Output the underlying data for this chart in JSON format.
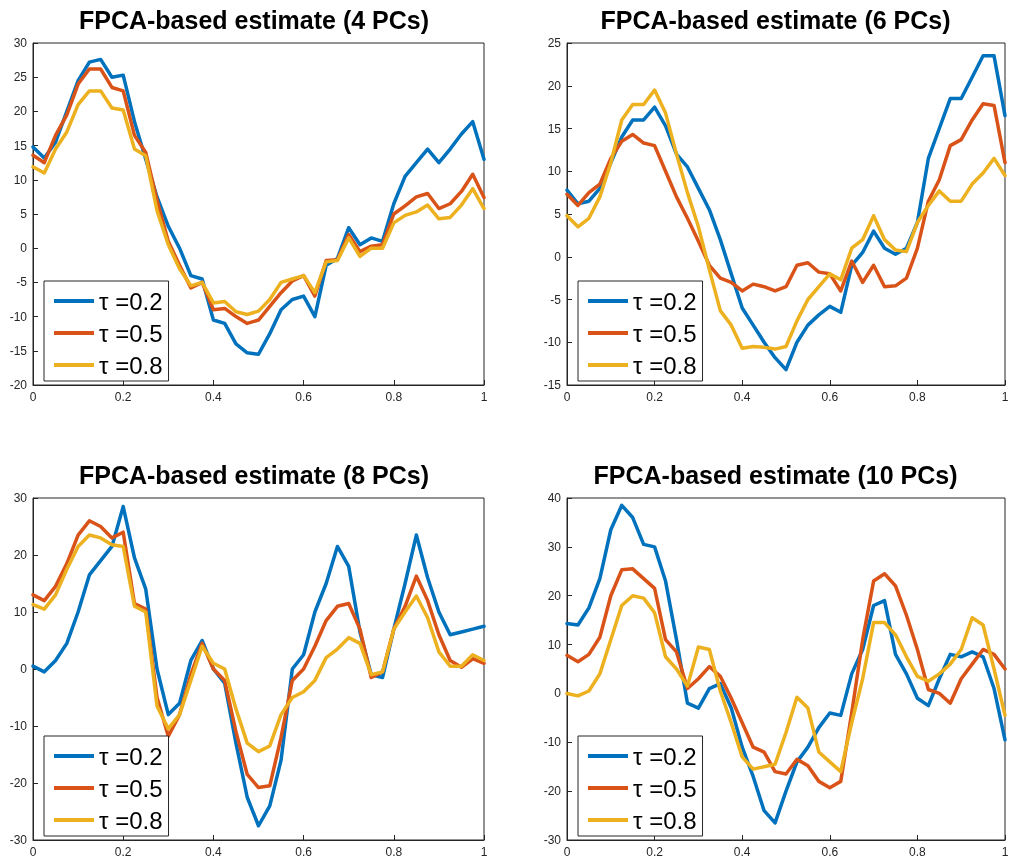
{
  "chart_data": [
    {
      "type": "line",
      "title": "FPCA-based estimate (4 PCs)",
      "legend": "bottom left",
      "grid": false,
      "marker": "none",
      "line_style": "solid",
      "xlim": [
        0,
        1
      ],
      "xticks": [
        0,
        0.2,
        0.4,
        0.6,
        0.8,
        1
      ],
      "ylim": [
        -20,
        30
      ],
      "yticks": [
        -20,
        -15,
        -10,
        -5,
        0,
        5,
        10,
        15,
        20,
        25,
        30
      ],
      "x": [
        0,
        0.025,
        0.05,
        0.075,
        0.1,
        0.125,
        0.15,
        0.175,
        0.2,
        0.225,
        0.25,
        0.275,
        0.3,
        0.325,
        0.35,
        0.375,
        0.4,
        0.425,
        0.45,
        0.475,
        0.5,
        0.525,
        0.55,
        0.575,
        0.6,
        0.625,
        0.65,
        0.675,
        0.7,
        0.725,
        0.75,
        0.775,
        0.8,
        0.825,
        0.85,
        0.875,
        0.9,
        0.925,
        0.95,
        0.975,
        1
      ],
      "series": [
        {
          "name": "τ =0.2",
          "color": "#0072bd",
          "values": [
            14.8,
            13.2,
            15.5,
            20,
            24.5,
            27.2,
            27.6,
            25,
            25.3,
            18.5,
            13,
            7.5,
            3.2,
            0,
            -4,
            -4.5,
            -10.5,
            -11,
            -14,
            -15.3,
            -15.5,
            -12.5,
            -9,
            -7.5,
            -7,
            -10,
            -2.5,
            -1.5,
            3,
            0.5,
            1.5,
            1,
            6.5,
            10.5,
            12.5,
            14.5,
            12.5,
            14.5,
            16.7,
            18.5,
            13
          ]
        },
        {
          "name": "τ =0.5",
          "color": "#d95319",
          "values": [
            13.6,
            12.5,
            16.5,
            19.5,
            24,
            26.2,
            26.2,
            23.5,
            23,
            16.5,
            14,
            7,
            1,
            -2.5,
            -5.8,
            -5,
            -9,
            -8.8,
            -10,
            -11,
            -10.5,
            -8.5,
            -6.5,
            -4.8,
            -4,
            -7,
            -1.8,
            -1.7,
            2,
            -0.5,
            0.3,
            0.5,
            5,
            6.2,
            7.5,
            8,
            5.8,
            6.5,
            8.3,
            10.8,
            7.4
          ]
        },
        {
          "name": "τ =0.8",
          "color": "#edb120",
          "values": [
            11.9,
            11,
            14.5,
            17,
            21,
            23,
            23,
            20.5,
            20.2,
            14.5,
            13.5,
            5.5,
            0.5,
            -3,
            -5.5,
            -5,
            -8,
            -7.8,
            -9.3,
            -9.7,
            -9.2,
            -7.5,
            -5,
            -4.5,
            -4,
            -6.5,
            -2,
            -1.8,
            1.5,
            -1.2,
            0,
            0,
            3.7,
            4.8,
            5.3,
            6.3,
            4.3,
            4.5,
            6.3,
            8.7,
            5.8
          ]
        }
      ]
    },
    {
      "type": "line",
      "title": "FPCA-based estimate (6 PCs)",
      "legend": "bottom left",
      "grid": false,
      "marker": "none",
      "line_style": "solid",
      "xlim": [
        0,
        1
      ],
      "xticks": [
        0,
        0.2,
        0.4,
        0.6,
        0.8,
        1
      ],
      "ylim": [
        -15,
        25
      ],
      "yticks": [
        -15,
        -10,
        -5,
        0,
        5,
        10,
        15,
        20,
        25
      ],
      "x": [
        0,
        0.025,
        0.05,
        0.075,
        0.1,
        0.125,
        0.15,
        0.175,
        0.2,
        0.225,
        0.25,
        0.275,
        0.3,
        0.325,
        0.35,
        0.375,
        0.4,
        0.425,
        0.45,
        0.475,
        0.5,
        0.525,
        0.55,
        0.575,
        0.6,
        0.625,
        0.65,
        0.675,
        0.7,
        0.725,
        0.75,
        0.775,
        0.8,
        0.825,
        0.85,
        0.875,
        0.9,
        0.925,
        0.95,
        0.975,
        1
      ],
      "series": [
        {
          "name": "τ =0.2",
          "color": "#0072bd",
          "values": [
            7.8,
            6.2,
            6.5,
            8,
            11,
            14,
            16,
            16,
            17.5,
            15.3,
            12,
            10.5,
            8,
            5.5,
            2,
            -2,
            -6,
            -8,
            -10,
            -11.8,
            -13.2,
            -10,
            -8,
            -6.8,
            -5.8,
            -6.5,
            -1,
            0.5,
            3,
            1,
            0.3,
            1,
            4,
            11.5,
            15,
            18.5,
            18.5,
            21,
            23.5,
            23.5,
            16.5
          ]
        },
        {
          "name": "τ =0.5",
          "color": "#d95319",
          "values": [
            7.3,
            6,
            7.5,
            8.5,
            11.5,
            13.5,
            14.3,
            13.3,
            13,
            10,
            7,
            4.5,
            1.8,
            -1,
            -2.5,
            -3,
            -4,
            -3.2,
            -3.5,
            -4,
            -3.5,
            -1,
            -0.7,
            -1.8,
            -2,
            -4,
            -0.5,
            -3,
            -1,
            -3.5,
            -3.4,
            -2.5,
            1,
            6.5,
            9,
            13,
            13.7,
            16,
            17.9,
            17.7,
            11
          ]
        },
        {
          "name": "τ =0.8",
          "color": "#edb120",
          "values": [
            4.8,
            3.5,
            4.5,
            7,
            11,
            16,
            17.8,
            17.8,
            19.5,
            16.8,
            12,
            7.5,
            3.5,
            -1.5,
            -6.3,
            -8,
            -10.7,
            -10.5,
            -10.6,
            -10.8,
            -10.5,
            -7.5,
            -5,
            -3.5,
            -2,
            -2.7,
            1,
            2,
            4.8,
            2,
            0.8,
            0.6,
            4,
            6,
            7.7,
            6.5,
            6.5,
            8.5,
            9.8,
            11.5,
            9.5
          ]
        }
      ]
    },
    {
      "type": "line",
      "title": "FPCA-based estimate (8 PCs)",
      "legend": "bottom left",
      "grid": false,
      "marker": "none",
      "line_style": "solid",
      "xlim": [
        0,
        1
      ],
      "xticks": [
        0,
        0.2,
        0.4,
        0.6,
        0.8,
        1
      ],
      "ylim": [
        -30,
        30
      ],
      "yticks": [
        -30,
        -20,
        -10,
        0,
        10,
        20,
        30
      ],
      "x": [
        0,
        0.025,
        0.05,
        0.075,
        0.1,
        0.125,
        0.15,
        0.175,
        0.2,
        0.225,
        0.25,
        0.275,
        0.3,
        0.325,
        0.35,
        0.375,
        0.4,
        0.425,
        0.45,
        0.475,
        0.5,
        0.525,
        0.55,
        0.575,
        0.6,
        0.625,
        0.65,
        0.675,
        0.7,
        0.725,
        0.75,
        0.775,
        0.8,
        0.825,
        0.85,
        0.875,
        0.9,
        0.925,
        0.95,
        0.975,
        1
      ],
      "series": [
        {
          "name": "τ =0.2",
          "color": "#0072bd",
          "values": [
            0.5,
            -0.5,
            1.5,
            4.5,
            10,
            16.5,
            19,
            21.5,
            28.5,
            19.5,
            14,
            0,
            -8,
            -6,
            1.5,
            5,
            0,
            -2.5,
            -13,
            -22.5,
            -27.5,
            -24,
            -16,
            0,
            2.5,
            10,
            15,
            21.5,
            18,
            6.5,
            -1,
            -1.5,
            7,
            15,
            23.5,
            16,
            10,
            6,
            6.5,
            7,
            7.5
          ]
        },
        {
          "name": "τ =0.5",
          "color": "#d95319",
          "values": [
            13,
            12,
            14.5,
            18.5,
            23.5,
            26,
            25,
            23,
            24,
            11.5,
            10.5,
            -5,
            -11.8,
            -8,
            -1,
            4.5,
            0,
            -2,
            -11,
            -18.5,
            -20.8,
            -20.5,
            -12,
            -2,
            0,
            4,
            8.5,
            11,
            11.5,
            7,
            -1.5,
            -0.5,
            7,
            11,
            16.3,
            12,
            6,
            1.5,
            0.3,
            1.8,
            1
          ]
        },
        {
          "name": "τ =0.8",
          "color": "#edb120",
          "values": [
            11.3,
            10.5,
            13,
            17.5,
            21.5,
            23.5,
            23,
            21.8,
            21.5,
            11,
            10,
            -6.5,
            -10.5,
            -8,
            -2,
            4,
            1,
            0,
            -7,
            -13,
            -14.5,
            -13.5,
            -8,
            -5,
            -4,
            -2,
            2,
            3.5,
            5.5,
            4.5,
            -1,
            -0.5,
            7,
            10,
            12.8,
            9,
            3,
            0.5,
            0.5,
            2.5,
            1.5
          ]
        }
      ]
    },
    {
      "type": "line",
      "title": "FPCA-based estimate (10 PCs)",
      "legend": "bottom left",
      "grid": false,
      "marker": "none",
      "line_style": "solid",
      "xlim": [
        0,
        1
      ],
      "xticks": [
        0,
        0.2,
        0.4,
        0.6,
        0.8,
        1
      ],
      "ylim": [
        -30,
        40
      ],
      "yticks": [
        -30,
        -20,
        -10,
        0,
        10,
        20,
        30,
        40
      ],
      "x": [
        0,
        0.025,
        0.05,
        0.075,
        0.1,
        0.125,
        0.15,
        0.175,
        0.2,
        0.225,
        0.25,
        0.275,
        0.3,
        0.325,
        0.35,
        0.375,
        0.4,
        0.425,
        0.45,
        0.475,
        0.5,
        0.525,
        0.55,
        0.575,
        0.6,
        0.625,
        0.65,
        0.675,
        0.7,
        0.725,
        0.75,
        0.775,
        0.8,
        0.825,
        0.85,
        0.875,
        0.9,
        0.925,
        0.95,
        0.975,
        1
      ],
      "series": [
        {
          "name": "τ =0.2",
          "color": "#0072bd",
          "values": [
            14.3,
            14,
            17.5,
            23.5,
            33.5,
            38.5,
            36,
            30.5,
            30,
            23,
            11,
            -2,
            -3,
            1,
            2,
            -3,
            -11,
            -17,
            -24,
            -26.5,
            -20,
            -14,
            -11,
            -7,
            -4,
            -4.5,
            4,
            9,
            18,
            19,
            8,
            4,
            -1,
            -2.5,
            3,
            8,
            7.5,
            8.5,
            7.5,
            1,
            -9.5
          ]
        },
        {
          "name": "τ =0.5",
          "color": "#d95319",
          "values": [
            7.8,
            6.5,
            8,
            11.5,
            20,
            25.3,
            25.5,
            23.5,
            21.5,
            11,
            8.5,
            1,
            3,
            5.5,
            3.5,
            -1,
            -6,
            -11,
            -12,
            -16,
            -16.5,
            -13.5,
            -14.8,
            -18,
            -19.3,
            -18,
            -4,
            11,
            23,
            24.5,
            22,
            16,
            9,
            0.8,
            0,
            -2,
            3,
            6,
            9,
            8,
            5
          ]
        },
        {
          "name": "τ =0.8",
          "color": "#edb120",
          "values": [
            0,
            -0.5,
            0.5,
            4,
            11,
            18,
            20,
            19.5,
            16.5,
            7.5,
            5,
            1.5,
            9.5,
            9,
            0.5,
            -6,
            -13,
            -15.5,
            -15,
            -14.5,
            -8,
            -0.8,
            -3,
            -12,
            -14,
            -16,
            -6,
            3,
            14.5,
            14.5,
            12,
            7.5,
            3.5,
            2.5,
            4,
            6,
            9,
            15.5,
            14,
            5,
            -4.5
          ]
        }
      ]
    }
  ]
}
